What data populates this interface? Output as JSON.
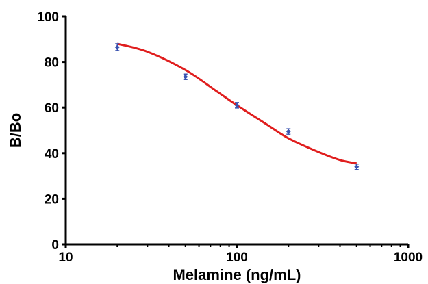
{
  "chart_data": {
    "type": "scatter",
    "title": "",
    "xlabel": "Melamine (ng/mL)",
    "ylabel": "B/Bo",
    "x_scale": "log",
    "xlim": [
      10,
      1000
    ],
    "ylim": [
      0,
      100
    ],
    "x_ticks": [
      10,
      100,
      1000
    ],
    "x_tick_labels": [
      "10",
      "100",
      "1000"
    ],
    "y_ticks": [
      0,
      20,
      40,
      60,
      80,
      100
    ],
    "y_tick_labels": [
      "0",
      "20",
      "40",
      "60",
      "80",
      "100"
    ],
    "grid": false,
    "legend": "none",
    "point_color": "#3a53b0",
    "fit_color": "#e01e1e",
    "points": [
      {
        "x": 20,
        "y": 86.5,
        "err": 1.5
      },
      {
        "x": 50,
        "y": 73.5,
        "err": 1.2
      },
      {
        "x": 100,
        "y": 61.0,
        "err": 1.2
      },
      {
        "x": 200,
        "y": 49.5,
        "err": 1.2
      },
      {
        "x": 500,
        "y": 34.0,
        "err": 1.2
      }
    ],
    "fit_curve": [
      {
        "x": 20,
        "y": 88.0
      },
      {
        "x": 30,
        "y": 84.5
      },
      {
        "x": 50,
        "y": 76.5
      },
      {
        "x": 75,
        "y": 67.5
      },
      {
        "x": 100,
        "y": 61.0
      },
      {
        "x": 150,
        "y": 52.5
      },
      {
        "x": 200,
        "y": 46.5
      },
      {
        "x": 300,
        "y": 40.5
      },
      {
        "x": 400,
        "y": 37.0
      },
      {
        "x": 500,
        "y": 35.5
      }
    ]
  }
}
